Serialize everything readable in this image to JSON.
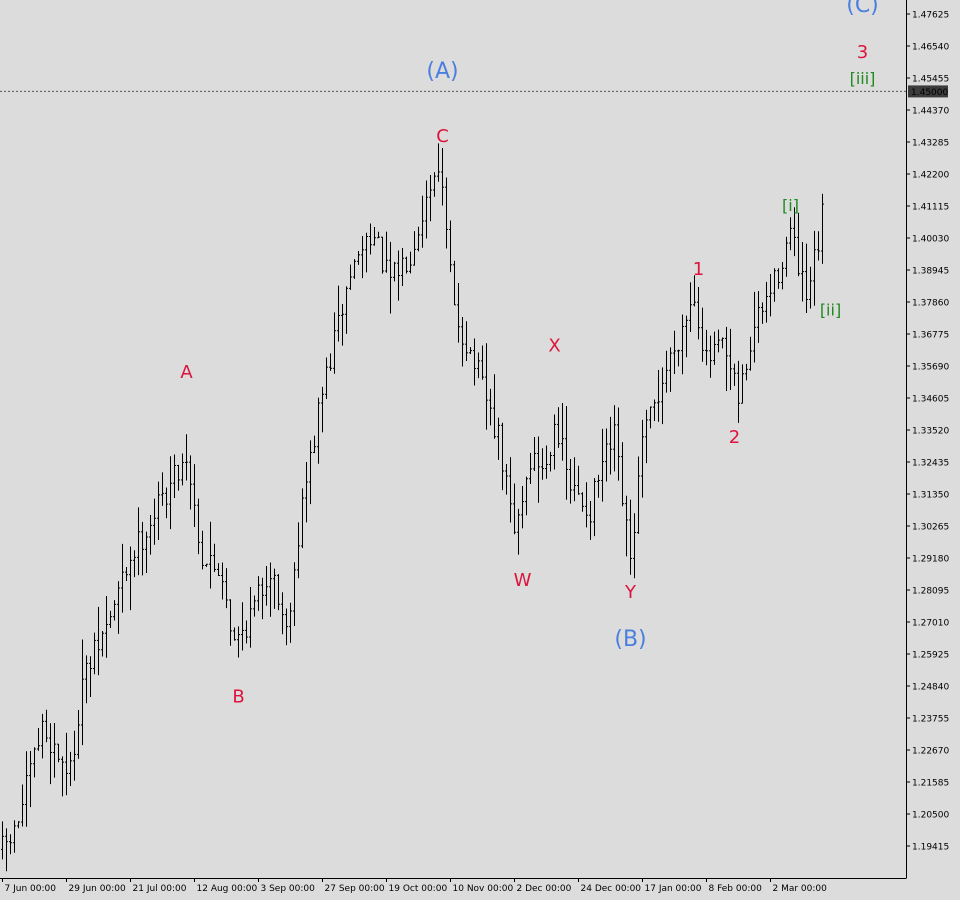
{
  "colors": {
    "background": "#dcdcdc",
    "bars": "#000000",
    "axis": "#000000",
    "wave_primary": "#4a7fe0",
    "wave_intermediate": "#dc143c",
    "wave_minor": "#1f8a1f",
    "level_badge_bg": "#3c3c3c",
    "level_badge_text": "#ffffff"
  },
  "chart_data": {
    "type": "ohlc",
    "series_name": "",
    "ylim": [
      1.1885,
      1.4817
    ],
    "y_ticks": [
      "1.47625",
      "1.46540",
      "1.45455",
      "1.44370",
      "1.43285",
      "1.42200",
      "1.41115",
      "1.40030",
      "1.38945",
      "1.37860",
      "1.36775",
      "1.35690",
      "1.34605",
      "1.33520",
      "1.32435",
      "1.31350",
      "1.30265",
      "1.29180",
      "1.28095",
      "1.27010",
      "1.25925",
      "1.24840",
      "1.23755",
      "1.22670",
      "1.21585",
      "1.20500",
      "1.19415"
    ],
    "x_ticks": [
      "7 Jun 00:00",
      "29 Jun 00:00",
      "21 Jul 00:00",
      "12 Aug 00:00",
      "3 Sep 00:00",
      "27 Sep 00:00",
      "19 Oct 00:00",
      "10 Nov 00:00",
      "2 Dec 00:00",
      "24 Dec 00:00",
      "17 Jan 00:00",
      "8 Feb 00:00",
      "2 Mar 00:00"
    ],
    "x_tick_bar_index": [
      0,
      16,
      32,
      48,
      64,
      80,
      96,
      112,
      128,
      144,
      160,
      176,
      192
    ],
    "bar_count": 206,
    "price_path_anchors": [
      [
        0,
        1.193
      ],
      [
        3,
        1.198
      ],
      [
        10,
        1.234
      ],
      [
        17,
        1.219
      ],
      [
        20,
        1.25
      ],
      [
        26,
        1.268
      ],
      [
        32,
        1.292
      ],
      [
        38,
        1.307
      ],
      [
        46,
        1.327
      ],
      [
        50,
        1.292
      ],
      [
        55,
        1.287
      ],
      [
        58,
        1.262
      ],
      [
        63,
        1.275
      ],
      [
        67,
        1.289
      ],
      [
        71,
        1.268
      ],
      [
        75,
        1.31
      ],
      [
        80,
        1.348
      ],
      [
        87,
        1.388
      ],
      [
        92,
        1.403
      ],
      [
        97,
        1.385
      ],
      [
        102,
        1.396
      ],
      [
        109,
        1.427
      ],
      [
        113,
        1.375
      ],
      [
        118,
        1.358
      ],
      [
        124,
        1.332
      ],
      [
        128,
        1.3
      ],
      [
        132,
        1.325
      ],
      [
        136,
        1.323
      ],
      [
        138,
        1.34
      ],
      [
        142,
        1.315
      ],
      [
        147,
        1.308
      ],
      [
        150,
        1.323
      ],
      [
        153,
        1.332
      ],
      [
        157,
        1.29
      ],
      [
        160,
        1.33
      ],
      [
        165,
        1.352
      ],
      [
        173,
        1.382
      ],
      [
        176,
        1.358
      ],
      [
        180,
        1.363
      ],
      [
        184,
        1.345
      ],
      [
        188,
        1.37
      ],
      [
        193,
        1.385
      ],
      [
        197,
        1.402
      ],
      [
        201,
        1.378
      ],
      [
        204,
        1.398
      ],
      [
        206,
        1.416
      ]
    ],
    "horizontal_level": {
      "value": 1.45,
      "label": "1.45000",
      "style": "dotted"
    },
    "wave_labels": [
      {
        "text": "(A)",
        "group": "primary",
        "bar": 110,
        "price": 1.4565
      },
      {
        "text": "C",
        "group": "intermediate",
        "bar": 110,
        "price": 1.4345
      },
      {
        "text": "A",
        "group": "intermediate",
        "bar": 46,
        "price": 1.3545
      },
      {
        "text": "B",
        "group": "intermediate",
        "bar": 59,
        "price": 1.2445
      },
      {
        "text": "X",
        "group": "intermediate",
        "bar": 138,
        "price": 1.3635
      },
      {
        "text": "W",
        "group": "intermediate",
        "bar": 130,
        "price": 1.284
      },
      {
        "text": "Y",
        "group": "intermediate",
        "bar": 157,
        "price": 1.28
      },
      {
        "text": "(B)",
        "group": "primary",
        "bar": 157,
        "price": 1.264
      },
      {
        "text": "1",
        "group": "intermediate",
        "bar": 174,
        "price": 1.3895
      },
      {
        "text": "2",
        "group": "intermediate",
        "bar": 183,
        "price": 1.3325
      },
      {
        "text": "[i]",
        "group": "minor",
        "bar": 197,
        "price": 1.411
      },
      {
        "text": "[ii]",
        "group": "minor",
        "bar": 207,
        "price": 1.3755
      },
      {
        "text": "(C)",
        "group": "primary",
        "bar": 215,
        "price": 1.479
      },
      {
        "text": "3",
        "group": "intermediate",
        "bar": 215,
        "price": 1.463
      },
      {
        "text": "[iii]",
        "group": "minor",
        "bar": 215,
        "price": 1.454
      }
    ]
  }
}
